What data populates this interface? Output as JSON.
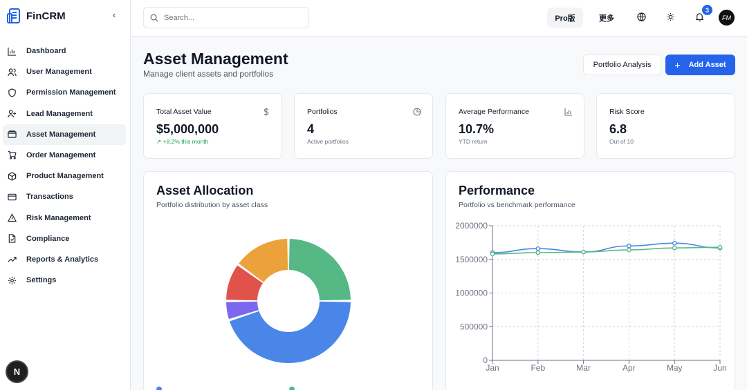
{
  "app": {
    "name": "FinCRM",
    "brand_color": "#2563eb"
  },
  "sidebar": {
    "items": [
      {
        "label": "Dashboard",
        "icon": "bar-chart-icon",
        "active": false
      },
      {
        "label": "User Management",
        "icon": "users-icon",
        "active": false
      },
      {
        "label": "Permission Management",
        "icon": "shield-icon",
        "active": false
      },
      {
        "label": "Lead Management",
        "icon": "user-plus-icon",
        "active": false
      },
      {
        "label": "Asset Management",
        "icon": "wallet-icon",
        "active": true
      },
      {
        "label": "Order Management",
        "icon": "cart-icon",
        "active": false
      },
      {
        "label": "Product Management",
        "icon": "package-icon",
        "active": false
      },
      {
        "label": "Transactions",
        "icon": "credit-card-icon",
        "active": false
      },
      {
        "label": "Risk Management",
        "icon": "alert-triangle-icon",
        "active": false
      },
      {
        "label": "Compliance",
        "icon": "file-check-icon",
        "active": false
      },
      {
        "label": "Reports & Analytics",
        "icon": "trend-icon",
        "active": false
      },
      {
        "label": "Settings",
        "icon": "gear-icon",
        "active": false
      }
    ],
    "bottom_badge": "N"
  },
  "topbar": {
    "search_placeholder": "Search...",
    "pro_label": "Pro版",
    "more_label": "更多",
    "notification_count": "3",
    "avatar_initials": "FM"
  },
  "page": {
    "title": "Asset Management",
    "subtitle": "Manage client assets and portfolios",
    "secondary_button": "Portfolio Analysis",
    "primary_button": "Add Asset",
    "primary_button_icon": "+"
  },
  "stats": [
    {
      "label": "Total Asset Value",
      "icon": "dollar-icon",
      "value": "$5,000,000",
      "note": "+8.2% this month",
      "trend": "up"
    },
    {
      "label": "Portfolios",
      "icon": "pie-chart-icon",
      "value": "4",
      "note": "Active portfolios",
      "trend": "none"
    },
    {
      "label": "Average Performance",
      "icon": "bar-chart-icon",
      "value": "10.7%",
      "note": "YTD return",
      "trend": "none"
    },
    {
      "label": "Risk Score",
      "icon": "",
      "value": "6.8",
      "note": "Out of 10",
      "trend": "none"
    }
  ],
  "allocation_card": {
    "title": "Asset Allocation",
    "subtitle": "Portfolio distribution by asset class"
  },
  "performance_card": {
    "title": "Performance",
    "subtitle": "Portfolio vs benchmark performance"
  },
  "chart_data": [
    {
      "type": "pie",
      "donut": true,
      "slices": [
        {
          "value": 45,
          "color": "#4a86e8"
        },
        {
          "value": 5,
          "color": "#7b68ee"
        },
        {
          "value": 10,
          "color": "#e0524a"
        },
        {
          "value": 15,
          "color": "#eba23a"
        },
        {
          "value": 25,
          "color": "#56b885"
        }
      ]
    },
    {
      "type": "line",
      "categories": [
        "Jan",
        "Feb",
        "Mar",
        "Apr",
        "May",
        "Jun"
      ],
      "y_ticks": [
        "0",
        "500000",
        "1000000",
        "1500000",
        "2000000"
      ],
      "ylim": [
        0,
        2000000
      ],
      "grid": true,
      "series": [
        {
          "color": "#4a86e8",
          "values": [
            1600000,
            1660000,
            1610000,
            1700000,
            1740000,
            1670000
          ]
        },
        {
          "color": "#56b885",
          "values": [
            1580000,
            1600000,
            1610000,
            1640000,
            1670000,
            1680000
          ]
        }
      ]
    }
  ]
}
